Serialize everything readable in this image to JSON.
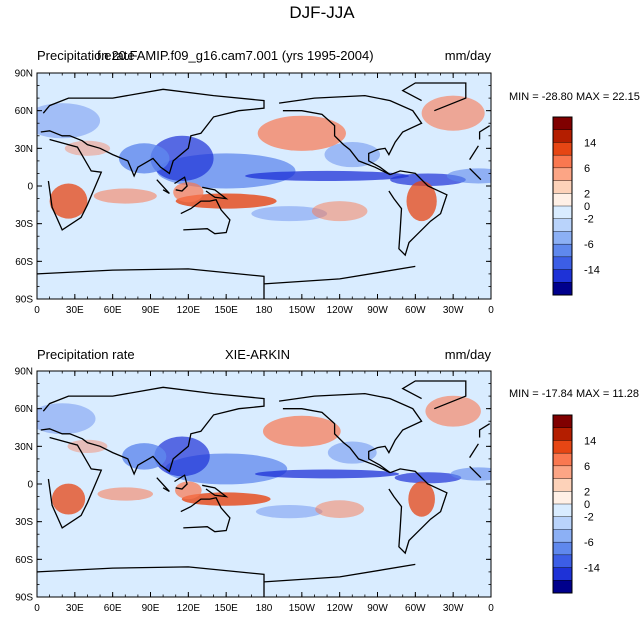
{
  "figure": {
    "title": "DJF-JJA"
  },
  "panels": [
    {
      "left_title": "Precipitation rate",
      "center_title": "f.e20.FAMIP.f09_g16.cam7.001 (yrs 1995-2004)",
      "right_title": "mm/day",
      "stats": "MIN = -28.80 MAX =  22.15"
    },
    {
      "left_title": "Precipitation rate",
      "center_title": "XIE-ARKIN",
      "right_title": "mm/day",
      "stats": "MIN = -17.84 MAX =  11.28"
    }
  ],
  "map": {
    "lat_ticks": [
      "90N",
      "60N",
      "30N",
      "0",
      "30S",
      "60S",
      "90S"
    ],
    "lon_ticks": [
      "0",
      "30E",
      "60E",
      "90E",
      "120E",
      "150E",
      "180",
      "150W",
      "120W",
      "90W",
      "60W",
      "30W",
      "0"
    ]
  },
  "colorbar": {
    "labels": [
      "14",
      "6",
      "2",
      "0",
      "-2",
      "-6",
      "-14"
    ],
    "colors": [
      "#800000",
      "#b41e00",
      "#e64614",
      "#fa7850",
      "#fca585",
      "#fdd2b9",
      "#fff0e6",
      "#d9ecff",
      "#b9d3fb",
      "#8cb0f5",
      "#5f88ed",
      "#3c5ee6",
      "#1e32d7",
      "#00008c"
    ]
  },
  "colors": {
    "wet": "#fa7850",
    "very_wet": "#e64614",
    "dry": "#5f88ed",
    "very_dry": "#1e32d7",
    "ocean_bg": "#d9ecff"
  }
}
